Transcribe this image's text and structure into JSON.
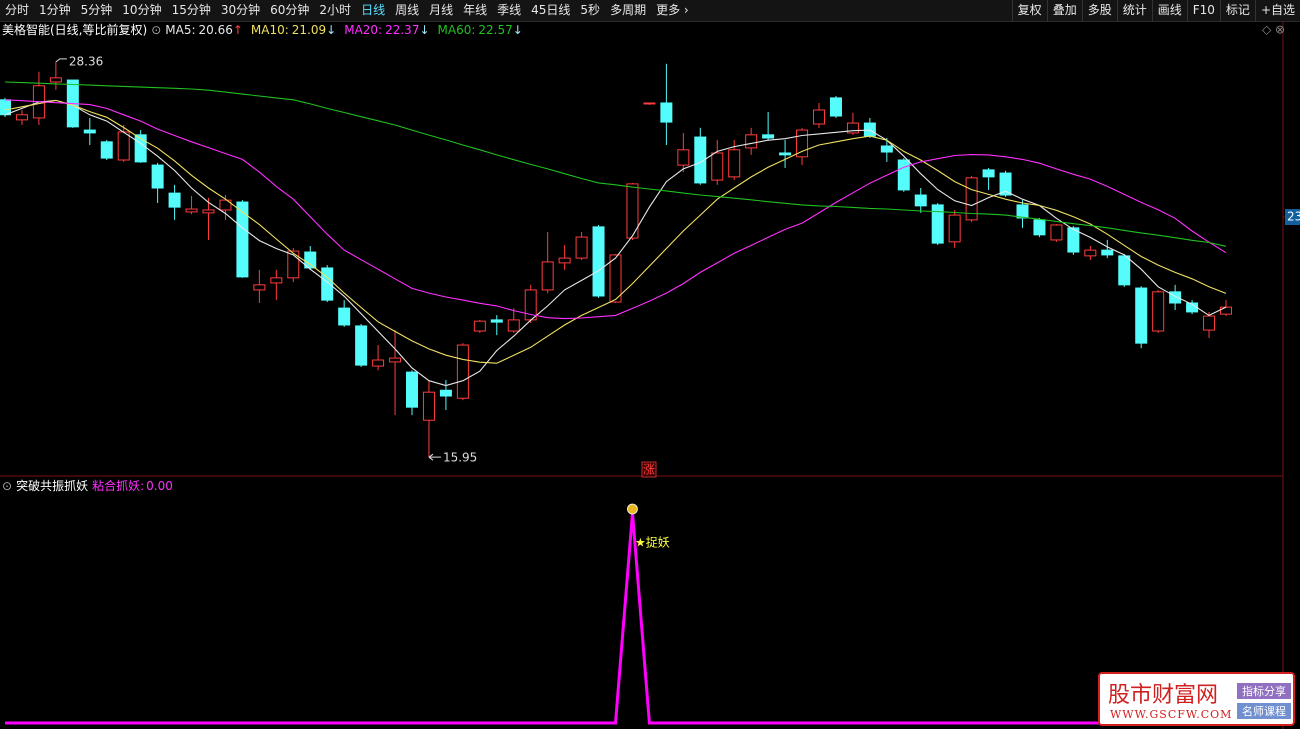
{
  "toolbar": {
    "periods": [
      "分时",
      "1分钟",
      "5分钟",
      "10分钟",
      "15分钟",
      "30分钟",
      "60分钟",
      "2小时",
      "日线",
      "周线",
      "月线",
      "年线",
      "季线",
      "45日线",
      "5秒",
      "多周期",
      "更多 ›"
    ],
    "active_period": "日线",
    "tools": [
      "复权",
      "叠加",
      "多股",
      "统计",
      "画线",
      "F10",
      "标记",
      "+自选"
    ]
  },
  "watermark": {
    "name": "股市财富网",
    "url": "WWW.GSCFW.COM",
    "tags": [
      "指标分享",
      "名师课程"
    ]
  },
  "chart_data": [
    {
      "type": "candlestick",
      "title": "美格智能(日线,等比前复权)",
      "up_color": "#ff3c3c",
      "down_color": "#54fcfc",
      "ylim": [
        15.39,
        29.11
      ],
      "yticks": [
        {
          "value": 23.49,
          "label": "23"
        }
      ],
      "annotation": "涨",
      "open": [
        27.17,
        26.54,
        26.6,
        27.73,
        27.79,
        26.22,
        25.85,
        25.28,
        26.07,
        25.12,
        24.24,
        23.65,
        23.62,
        23.71,
        23.96,
        21.2,
        21.42,
        21.58,
        22.39,
        21.89,
        20.63,
        20.07,
        18.81,
        18.94,
        18.62,
        17.11,
        18.05,
        17.8,
        19.91,
        20.26,
        19.91,
        20.26,
        21.2,
        22.05,
        22.2,
        23.18,
        20.82,
        22.83,
        27.04,
        27.07,
        25.12,
        26.0,
        24.65,
        24.75,
        25.66,
        26.07,
        25.5,
        25.38,
        26.41,
        27.23,
        26.13,
        26.44,
        25.72,
        25.28,
        24.18,
        23.87,
        22.71,
        23.4,
        24.97,
        24.87,
        23.87,
        23.4,
        22.77,
        23.15,
        22.27,
        22.45,
        22.27,
        21.26,
        19.91,
        21.14,
        20.79,
        19.94,
        20.44
      ],
      "high": [
        27.23,
        26.85,
        28.05,
        28.36,
        27.79,
        26.6,
        25.91,
        26.38,
        26.22,
        25.19,
        24.5,
        24.15,
        24.09,
        24.18,
        24.02,
        21.83,
        21.83,
        22.52,
        22.58,
        21.98,
        20.88,
        20.13,
        19.47,
        19.94,
        18.68,
        18.37,
        18.37,
        19.53,
        20.26,
        20.41,
        20.63,
        21.36,
        23.02,
        22.61,
        23.02,
        23.24,
        22.33,
        24.56,
        27.07,
        28.3,
        26.13,
        26.29,
        25.91,
        25.91,
        26.29,
        26.79,
        25.91,
        26.29,
        27.07,
        27.29,
        26.76,
        26.6,
        25.97,
        25.34,
        24.4,
        23.93,
        23.71,
        24.78,
        25.03,
        24.94,
        24.02,
        23.46,
        23.27,
        23.21,
        22.58,
        22.77,
        22.33,
        21.32,
        21.2,
        21.36,
        20.88,
        20.51,
        20.88
      ],
      "low": [
        26.63,
        26.38,
        26.38,
        27.48,
        26.29,
        25.75,
        25.28,
        25.22,
        25.19,
        23.93,
        23.4,
        23.58,
        22.77,
        23.4,
        21.58,
        20.79,
        20.88,
        21.45,
        21.83,
        20.82,
        20.04,
        18.78,
        18.68,
        17.27,
        17.27,
        15.95,
        17.43,
        17.74,
        19.85,
        19.78,
        19.85,
        20.16,
        21.1,
        21.83,
        22.14,
        20.95,
        20.79,
        22.77,
        27.01,
        25.75,
        24.9,
        24.5,
        24.5,
        24.65,
        25.44,
        25.91,
        25.03,
        25.12,
        26.29,
        26.6,
        26.07,
        25.97,
        25.22,
        24.28,
        23.62,
        22.61,
        22.52,
        23.33,
        24.34,
        24.12,
        23.15,
        22.86,
        22.71,
        22.3,
        22.14,
        22.2,
        21.29,
        19.37,
        19.85,
        20.57,
        20.44,
        19.69,
        20.38
      ],
      "close": [
        26.7,
        26.7,
        27.61,
        27.86,
        26.32,
        26.13,
        25.34,
        26.16,
        25.22,
        24.4,
        23.8,
        23.74,
        23.71,
        24.02,
        21.61,
        21.36,
        21.58,
        22.42,
        21.89,
        20.88,
        20.1,
        18.84,
        19.0,
        19.06,
        17.52,
        17.99,
        17.87,
        19.47,
        20.22,
        20.19,
        20.26,
        21.2,
        22.08,
        22.2,
        22.86,
        21.01,
        22.3,
        24.53,
        27.07,
        26.47,
        25.6,
        24.56,
        25.5,
        25.6,
        26.07,
        25.97,
        25.44,
        26.22,
        26.85,
        26.66,
        26.44,
        26.03,
        25.53,
        24.34,
        23.84,
        22.67,
        23.55,
        24.72,
        24.75,
        24.18,
        23.46,
        22.93,
        23.24,
        22.39,
        22.45,
        22.3,
        21.36,
        19.53,
        21.14,
        20.79,
        20.51,
        20.38,
        20.66
      ],
      "series": [
        {
          "name": "MA5:",
          "color": "#e8e8e8",
          "trend": "↑",
          "trend_color": "#ff3c3c",
          "values": [
            26.7,
            26.9,
            27.1,
            27.15,
            27.0,
            26.7,
            26.5,
            26.15,
            25.8,
            25.4,
            24.95,
            24.4,
            23.95,
            23.6,
            23.15,
            22.75,
            22.5,
            22.3,
            21.85,
            21.45,
            21.0,
            20.45,
            19.9,
            19.35,
            18.75,
            18.35,
            18.2,
            18.35,
            18.65,
            19.3,
            19.75,
            20.25,
            20.7,
            21.2,
            21.5,
            21.8,
            22.2,
            22.9,
            23.8,
            24.6,
            25.0,
            25.2,
            25.55,
            25.7,
            25.8,
            25.9,
            25.95,
            26.05,
            26.1,
            26.15,
            26.2,
            26.22,
            25.9,
            25.4,
            24.85,
            24.35,
            24.0,
            23.85,
            24.1,
            24.3,
            24.05,
            23.85,
            23.45,
            23.1,
            22.85,
            22.55,
            22.3,
            21.85,
            21.3,
            21.0,
            20.75,
            20.4,
            20.66
          ]
        },
        {
          "name": "MA10:",
          "color": "#f0e060",
          "trend": "↓",
          "trend_color": "#9fe8ff",
          "values": [
            26.85,
            26.95,
            27.05,
            27.15,
            27.0,
            26.8,
            26.62,
            26.3,
            25.95,
            25.65,
            25.25,
            24.8,
            24.4,
            24.05,
            23.65,
            23.25,
            22.8,
            22.35,
            22.0,
            21.6,
            21.1,
            20.65,
            20.2,
            19.9,
            19.6,
            19.35,
            19.15,
            19.02,
            18.93,
            18.9,
            19.15,
            19.4,
            19.75,
            20.1,
            20.4,
            20.65,
            20.9,
            21.4,
            21.95,
            22.5,
            23.05,
            23.55,
            24.05,
            24.4,
            24.75,
            25.05,
            25.3,
            25.55,
            25.75,
            25.85,
            25.95,
            26.03,
            25.9,
            25.55,
            25.28,
            24.95,
            24.6,
            24.35,
            24.2,
            24.05,
            23.93,
            23.85,
            23.7,
            23.5,
            23.27,
            22.95,
            22.6,
            22.25,
            21.98,
            21.75,
            21.55,
            21.3,
            21.09
          ]
        },
        {
          "name": "MA20:",
          "color": "#ff30ff",
          "trend": "↓",
          "trend_color": "#9fe8ff",
          "values": [
            27.17,
            27.14,
            27.11,
            27.08,
            27.05,
            27.02,
            26.9,
            26.7,
            26.5,
            26.25,
            26.05,
            25.85,
            25.67,
            25.48,
            25.3,
            24.9,
            24.45,
            24.05,
            23.5,
            22.95,
            22.45,
            22.15,
            21.85,
            21.55,
            21.25,
            21.1,
            20.98,
            20.88,
            20.78,
            20.7,
            20.55,
            20.43,
            20.33,
            20.3,
            20.32,
            20.36,
            20.4,
            20.62,
            20.85,
            21.1,
            21.4,
            21.75,
            22.05,
            22.35,
            22.6,
            22.85,
            23.1,
            23.3,
            23.62,
            23.95,
            24.25,
            24.55,
            24.8,
            25.05,
            25.22,
            25.32,
            25.42,
            25.45,
            25.44,
            25.38,
            25.3,
            25.18,
            25.0,
            24.83,
            24.68,
            24.45,
            24.2,
            23.95,
            23.72,
            23.45,
            23.05,
            22.7,
            22.37
          ]
        },
        {
          "name": "MA60:",
          "color": "#20c020",
          "trend": "↓",
          "trend_color": "#9fe8ff",
          "values": [
            27.73,
            27.71,
            27.69,
            27.67,
            27.65,
            27.63,
            27.61,
            27.59,
            27.57,
            27.55,
            27.53,
            27.51,
            27.47,
            27.41,
            27.35,
            27.29,
            27.23,
            27.17,
            27.04,
            26.9,
            26.77,
            26.64,
            26.51,
            26.38,
            26.22,
            26.06,
            25.91,
            25.75,
            25.6,
            25.44,
            25.29,
            25.14,
            25.0,
            24.85,
            24.7,
            24.56,
            24.5,
            24.43,
            24.37,
            24.31,
            24.24,
            24.18,
            24.13,
            24.08,
            24.03,
            23.97,
            23.92,
            23.87,
            23.84,
            23.82,
            23.79,
            23.76,
            23.74,
            23.71,
            23.68,
            23.66,
            23.63,
            23.6,
            23.58,
            23.55,
            23.48,
            23.42,
            23.35,
            23.28,
            23.22,
            23.15,
            23.07,
            22.99,
            22.92,
            22.84,
            22.76,
            22.69,
            22.57
          ]
        }
      ]
    },
    {
      "type": "line",
      "title": "突破共振抓妖",
      "annotation": "★捉妖",
      "ylim": [
        0,
        1.1
      ],
      "series": [
        {
          "name": "粘合抓妖:",
          "color": "#ff00ff",
          "legend_value": {
            "value": 0,
            "label": "0.00"
          },
          "values": [
            0,
            0,
            0,
            0,
            0,
            0,
            0,
            0,
            0,
            0,
            0,
            0,
            0,
            0,
            0,
            0,
            0,
            0,
            0,
            0,
            0,
            0,
            0,
            0,
            0,
            0,
            0,
            0,
            0,
            0,
            0,
            0,
            0,
            0,
            0,
            0,
            0,
            1,
            0,
            0,
            0,
            0,
            0,
            0,
            0,
            0,
            0,
            0,
            0,
            0,
            0,
            0,
            0,
            0,
            0,
            0,
            0,
            0,
            0,
            0,
            0,
            0,
            0,
            0,
            0,
            0,
            0,
            0,
            0,
            0,
            0,
            0,
            0
          ]
        }
      ]
    }
  ]
}
